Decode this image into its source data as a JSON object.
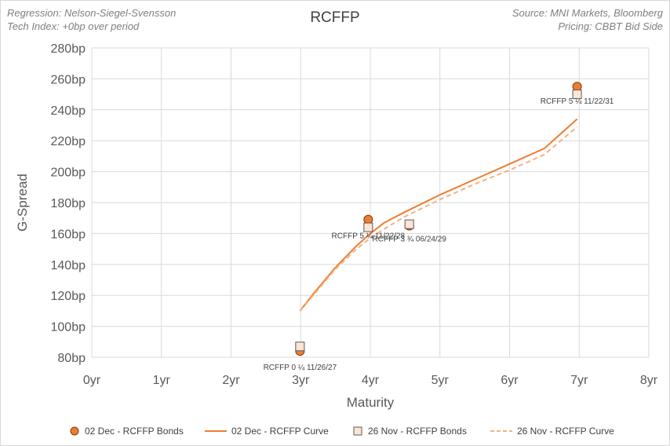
{
  "header": {
    "regression": "Regression: Nelson-Siegel-Svensson",
    "tech_index": "Tech Index: +0bp over period",
    "source": "Source: MNI Markets, Bloomberg",
    "pricing": "Pricing: CBBT Bid Side"
  },
  "colors": {
    "dec_series": "#ed7d31",
    "nov_series": "#f4b183",
    "nov_marker_fill": "#fbe5d6",
    "grid": "#d9d9d9"
  },
  "chart_data": {
    "type": "scatter",
    "title": "RCFFP",
    "xlabel": "Maturity",
    "ylabel": "G-Spread",
    "xlim": [
      0,
      8
    ],
    "ylim": [
      80,
      280
    ],
    "x_ticks": [
      {
        "value": 0,
        "label": "0yr"
      },
      {
        "value": 1,
        "label": "1yr"
      },
      {
        "value": 2,
        "label": "2yr"
      },
      {
        "value": 3,
        "label": "3yr"
      },
      {
        "value": 4,
        "label": "4yr"
      },
      {
        "value": 5,
        "label": "5yr"
      },
      {
        "value": 6,
        "label": "6yr"
      },
      {
        "value": 7,
        "label": "7yr"
      },
      {
        "value": 8,
        "label": "8yr"
      }
    ],
    "y_ticks": [
      {
        "value": 80,
        "label": "80bp"
      },
      {
        "value": 100,
        "label": "100bp"
      },
      {
        "value": 120,
        "label": "120bp"
      },
      {
        "value": 140,
        "label": "140bp"
      },
      {
        "value": 160,
        "label": "160bp"
      },
      {
        "value": 180,
        "label": "180bp"
      },
      {
        "value": 200,
        "label": "200bp"
      },
      {
        "value": 220,
        "label": "220bp"
      },
      {
        "value": 240,
        "label": "240bp"
      },
      {
        "value": 260,
        "label": "260bp"
      },
      {
        "value": 280,
        "label": "280bp"
      }
    ],
    "grid": true,
    "legend_position": "bottom",
    "series": [
      {
        "name": "02 Dec - RCFFP Bonds",
        "kind": "markers",
        "marker": "circle",
        "points": [
          {
            "label": "RCFFP 0 ¼ 11/26/27",
            "x": 2.99,
            "y": 84
          },
          {
            "label": "RCFFP 5 ¼ 11/22/28",
            "x": 3.97,
            "y": 169
          },
          {
            "label": "RCFFP 3 ¾ 06/24/29",
            "x": 4.56,
            "y": 165
          },
          {
            "label": "RCFFP 5 ¼ 11/22/31",
            "x": 6.97,
            "y": 255
          }
        ]
      },
      {
        "name": "02 Dec - RCFFP Curve",
        "kind": "line",
        "dashed": false,
        "points": [
          {
            "x": 2.99,
            "y": 110
          },
          {
            "x": 3.2,
            "y": 122
          },
          {
            "x": 3.5,
            "y": 138
          },
          {
            "x": 3.8,
            "y": 152
          },
          {
            "x": 4.0,
            "y": 160
          },
          {
            "x": 4.2,
            "y": 167
          },
          {
            "x": 4.5,
            "y": 174
          },
          {
            "x": 5.0,
            "y": 185
          },
          {
            "x": 5.5,
            "y": 195
          },
          {
            "x": 6.0,
            "y": 205
          },
          {
            "x": 6.5,
            "y": 215
          },
          {
            "x": 6.97,
            "y": 234
          }
        ]
      },
      {
        "name": "26 Nov - RCFFP Bonds",
        "kind": "markers",
        "marker": "square",
        "points": [
          {
            "label": "RCFFP 0 ¼ 11/26/27",
            "x": 2.99,
            "y": 87
          },
          {
            "label": "RCFFP 5 ¼ 11/22/28",
            "x": 3.97,
            "y": 164
          },
          {
            "label": "RCFFP 3 ¾ 06/24/29",
            "x": 4.56,
            "y": 166
          },
          {
            "label": "RCFFP 5 ¼ 11/22/31",
            "x": 6.97,
            "y": 250
          }
        ]
      },
      {
        "name": "26 Nov - RCFFP Curve",
        "kind": "line",
        "dashed": true,
        "points": [
          {
            "x": 2.99,
            "y": 110
          },
          {
            "x": 3.2,
            "y": 121
          },
          {
            "x": 3.5,
            "y": 137
          },
          {
            "x": 3.8,
            "y": 150
          },
          {
            "x": 4.0,
            "y": 157
          },
          {
            "x": 4.2,
            "y": 163
          },
          {
            "x": 4.5,
            "y": 171
          },
          {
            "x": 5.0,
            "y": 182
          },
          {
            "x": 5.5,
            "y": 192
          },
          {
            "x": 6.0,
            "y": 201
          },
          {
            "x": 6.5,
            "y": 211
          },
          {
            "x": 6.97,
            "y": 229
          }
        ]
      }
    ]
  }
}
